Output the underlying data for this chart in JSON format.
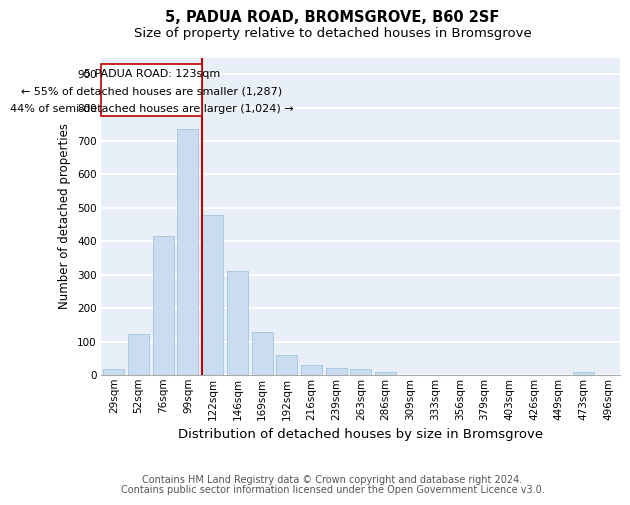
{
  "title": "5, PADUA ROAD, BROMSGROVE, B60 2SF",
  "subtitle": "Size of property relative to detached houses in Bromsgrove",
  "xlabel": "Distribution of detached houses by size in Bromsgrove",
  "ylabel": "Number of detached properties",
  "bar_color": "#c9dcf0",
  "bar_edge_color": "#9bbdd8",
  "background_color": "#e8eff8",
  "grid_color": "#ffffff",
  "categories": [
    "29sqm",
    "52sqm",
    "76sqm",
    "99sqm",
    "122sqm",
    "146sqm",
    "169sqm",
    "192sqm",
    "216sqm",
    "239sqm",
    "263sqm",
    "286sqm",
    "309sqm",
    "333sqm",
    "356sqm",
    "379sqm",
    "403sqm",
    "426sqm",
    "449sqm",
    "473sqm",
    "496sqm"
  ],
  "values": [
    18,
    122,
    415,
    735,
    480,
    310,
    130,
    60,
    30,
    22,
    18,
    10,
    0,
    0,
    0,
    0,
    0,
    0,
    0,
    10,
    0
  ],
  "property_line_color": "#bb0000",
  "annotation_line1": "5 PADUA ROAD: 123sqm",
  "annotation_line2": "← 55% of detached houses are smaller (1,287)",
  "annotation_line3": "44% of semi-detached houses are larger (1,024) →",
  "annotation_box_facecolor": "#ffffff",
  "annotation_box_edgecolor": "#bb0000",
  "ylim": [
    0,
    950
  ],
  "yticks": [
    0,
    100,
    200,
    300,
    400,
    500,
    600,
    700,
    800,
    900
  ],
  "footer_line1": "Contains HM Land Registry data © Crown copyright and database right 2024.",
  "footer_line2": "Contains public sector information licensed under the Open Government Licence v3.0.",
  "title_fontsize": 10.5,
  "subtitle_fontsize": 9.5,
  "xlabel_fontsize": 9.5,
  "ylabel_fontsize": 8.5,
  "tick_fontsize": 7.5,
  "annotation_fontsize": 8,
  "footer_fontsize": 7
}
